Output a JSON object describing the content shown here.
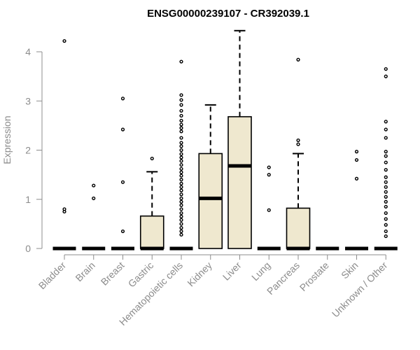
{
  "chart_data": {
    "type": "box",
    "title": "ENSG00000239107 - CR392039.1",
    "xlabel": "",
    "ylabel": "Expression",
    "ylim": [
      0,
      4.5
    ],
    "yticks": [
      0,
      1,
      2,
      3,
      4
    ],
    "grid": false,
    "box_fill": "#efe8cf",
    "categories": [
      "Bladder",
      "Brain",
      "Breast",
      "Gastric",
      "Hematopoietic cells",
      "Kidney",
      "Liver",
      "Lung",
      "Pancreas",
      "Prostate",
      "Skin",
      "Unknown / Other"
    ],
    "boxes": [
      {
        "category": "Bladder",
        "q1": 0,
        "median": 0,
        "q3": 0,
        "whisker_low": 0,
        "whisker_high": 0,
        "outliers": [
          0.75,
          0.8,
          4.22
        ]
      },
      {
        "category": "Brain",
        "q1": 0,
        "median": 0,
        "q3": 0,
        "whisker_low": 0,
        "whisker_high": 0,
        "outliers": [
          1.02,
          1.28
        ]
      },
      {
        "category": "Breast",
        "q1": 0,
        "median": 0,
        "q3": 0,
        "whisker_low": 0,
        "whisker_high": 0,
        "outliers": [
          0.35,
          1.35,
          2.42,
          3.05
        ]
      },
      {
        "category": "Gastric",
        "q1": 0,
        "median": 0,
        "q3": 0.66,
        "whisker_low": 0,
        "whisker_high": 1.56,
        "outliers": [
          1.83
        ]
      },
      {
        "category": "Hematopoietic cells",
        "q1": 0,
        "median": 0,
        "q3": 0,
        "whisker_low": 0,
        "whisker_high": 0,
        "outliers": [
          0.28,
          0.35,
          0.42,
          0.5,
          0.58,
          0.65,
          0.72,
          0.8,
          0.88,
          0.95,
          1.02,
          1.1,
          1.18,
          1.25,
          1.32,
          1.4,
          1.48,
          1.55,
          1.62,
          1.7,
          1.78,
          1.85,
          1.92,
          2.0,
          2.08,
          2.15,
          2.25,
          2.38,
          2.45,
          2.52,
          2.6,
          2.7,
          2.8,
          2.92,
          3.02,
          3.12,
          3.8
        ]
      },
      {
        "category": "Kidney",
        "q1": 0,
        "median": 1.02,
        "q3": 1.93,
        "whisker_low": 0,
        "whisker_high": 2.92,
        "outliers": []
      },
      {
        "category": "Liver",
        "q1": 0,
        "median": 1.68,
        "q3": 2.68,
        "whisker_low": 0,
        "whisker_high": 4.43,
        "outliers": []
      },
      {
        "category": "Lung",
        "q1": 0,
        "median": 0,
        "q3": 0,
        "whisker_low": 0,
        "whisker_high": 0,
        "outliers": [
          0.78,
          1.5,
          1.65
        ]
      },
      {
        "category": "Pancreas",
        "q1": 0,
        "median": 0,
        "q3": 0.82,
        "whisker_low": 0,
        "whisker_high": 1.93,
        "outliers": [
          2.12,
          2.2,
          3.84
        ]
      },
      {
        "category": "Prostate",
        "q1": 0,
        "median": 0,
        "q3": 0,
        "whisker_low": 0,
        "whisker_high": 0,
        "outliers": []
      },
      {
        "category": "Skin",
        "q1": 0,
        "median": 0,
        "q3": 0,
        "whisker_low": 0,
        "whisker_high": 0,
        "outliers": [
          1.42,
          1.8,
          1.97
        ]
      },
      {
        "category": "Unknown / Other",
        "q1": 0,
        "median": 0,
        "q3": 0,
        "whisker_low": 0,
        "whisker_high": 0,
        "outliers": [
          0.25,
          0.35,
          0.48,
          0.6,
          0.72,
          0.85,
          0.95,
          1.05,
          1.15,
          1.25,
          1.35,
          1.45,
          1.6,
          1.75,
          1.88,
          1.97,
          2.25,
          2.42,
          2.58,
          3.5,
          3.65
        ]
      }
    ]
  }
}
